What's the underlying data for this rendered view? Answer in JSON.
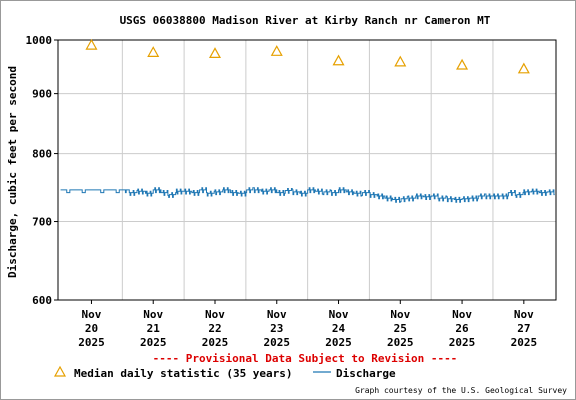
{
  "chart_data": {
    "type": "line",
    "title": "USGS 06038800 Madison River at Kirby Ranch nr Cameron MT",
    "ylabel": "Discharge, cubic feet per second",
    "xlabel": "",
    "y_scale": "log",
    "ylim": [
      600,
      1000
    ],
    "y_ticks": [
      "1000",
      "900",
      "800",
      "700",
      "600"
    ],
    "y_tick_values": [
      1000,
      900,
      800,
      700,
      600
    ],
    "x_ticks": [
      {
        "month": "Nov",
        "day": "20",
        "year": "2025"
      },
      {
        "month": "Nov",
        "day": "21",
        "year": "2025"
      },
      {
        "month": "Nov",
        "day": "22",
        "year": "2025"
      },
      {
        "month": "Nov",
        "day": "23",
        "year": "2025"
      },
      {
        "month": "Nov",
        "day": "24",
        "year": "2025"
      },
      {
        "month": "Nov",
        "day": "25",
        "year": "2025"
      },
      {
        "month": "Nov",
        "day": "26",
        "year": "2025"
      },
      {
        "month": "Nov",
        "day": "27",
        "year": "2025"
      }
    ],
    "xlim": [
      "2025-11-19T23:00",
      "2025-11-28T00:30"
    ],
    "grid": true,
    "provisional_note": "---- Provisional Data Subject to Revision ----",
    "legend": {
      "placement": "bottom",
      "median_label": "Median daily statistic (35 years)",
      "discharge_label": "Discharge"
    },
    "credit": "Graph courtesy of the U.S. Geological Survey",
    "series": [
      {
        "name": "Median daily statistic (35 years)",
        "kind": "triangle-markers",
        "x": [
          "2025-11-20T12:00",
          "2025-11-21T12:00",
          "2025-11-22T12:00",
          "2025-11-23T12:00",
          "2025-11-24T12:00",
          "2025-11-25T12:00",
          "2025-11-26T12:00",
          "2025-11-27T12:00"
        ],
        "values": [
          990,
          976,
          974,
          978,
          960,
          958,
          952,
          945
        ]
      },
      {
        "name": "Discharge",
        "kind": "step-line",
        "x": [
          "2025-11-20T00:00",
          "2025-11-20T12:00",
          "2025-11-21T00:00",
          "2025-11-21T03:00",
          "2025-11-21T06:00",
          "2025-11-21T09:00",
          "2025-11-21T12:00",
          "2025-11-21T15:00",
          "2025-11-21T18:00",
          "2025-11-21T21:00",
          "2025-11-22T00:00",
          "2025-11-22T03:00",
          "2025-11-22T06:00",
          "2025-11-22T09:00",
          "2025-11-22T12:00",
          "2025-11-22T15:00",
          "2025-11-22T18:00",
          "2025-11-22T21:00",
          "2025-11-23T00:00",
          "2025-11-23T03:00",
          "2025-11-23T06:00",
          "2025-11-23T09:00",
          "2025-11-23T12:00",
          "2025-11-23T15:00",
          "2025-11-23T18:00",
          "2025-11-23T21:00",
          "2025-11-24T00:00",
          "2025-11-24T03:00",
          "2025-11-24T06:00",
          "2025-11-24T09:00",
          "2025-11-24T12:00",
          "2025-11-24T15:00",
          "2025-11-24T18:00",
          "2025-11-24T21:00",
          "2025-11-25T00:00",
          "2025-11-25T03:00",
          "2025-11-25T06:00",
          "2025-11-25T09:00",
          "2025-11-25T12:00",
          "2025-11-25T15:00",
          "2025-11-25T18:00",
          "2025-11-25T21:00",
          "2025-11-26T00:00",
          "2025-11-26T03:00",
          "2025-11-26T06:00",
          "2025-11-26T09:00",
          "2025-11-26T12:00",
          "2025-11-26T15:00",
          "2025-11-26T18:00",
          "2025-11-26T21:00",
          "2025-11-27T00:00",
          "2025-11-27T03:00",
          "2025-11-27T06:00",
          "2025-11-27T09:00",
          "2025-11-27T12:00",
          "2025-11-27T15:00",
          "2025-11-27T18:00",
          "2025-11-27T21:00",
          "2025-11-28T00:00"
        ],
        "values": [
          745,
          745,
          745,
          741,
          743,
          740,
          745,
          741,
          738,
          743,
          743,
          741,
          745,
          740,
          742,
          745,
          741,
          740,
          745,
          745,
          743,
          745,
          741,
          744,
          742,
          740,
          745,
          743,
          742,
          741,
          745,
          742,
          740,
          741,
          738,
          736,
          733,
          731,
          732,
          733,
          736,
          735,
          736,
          733,
          732,
          731,
          732,
          733,
          736,
          736,
          736,
          736,
          741,
          738,
          742,
          743,
          741,
          742,
          742
        ]
      }
    ]
  },
  "colors": {
    "median_marker": "#e6a000",
    "discharge_line": "#1f77b4",
    "provisional_text": "#dd0000",
    "grid": "#cccccc",
    "axis": "#000000"
  }
}
